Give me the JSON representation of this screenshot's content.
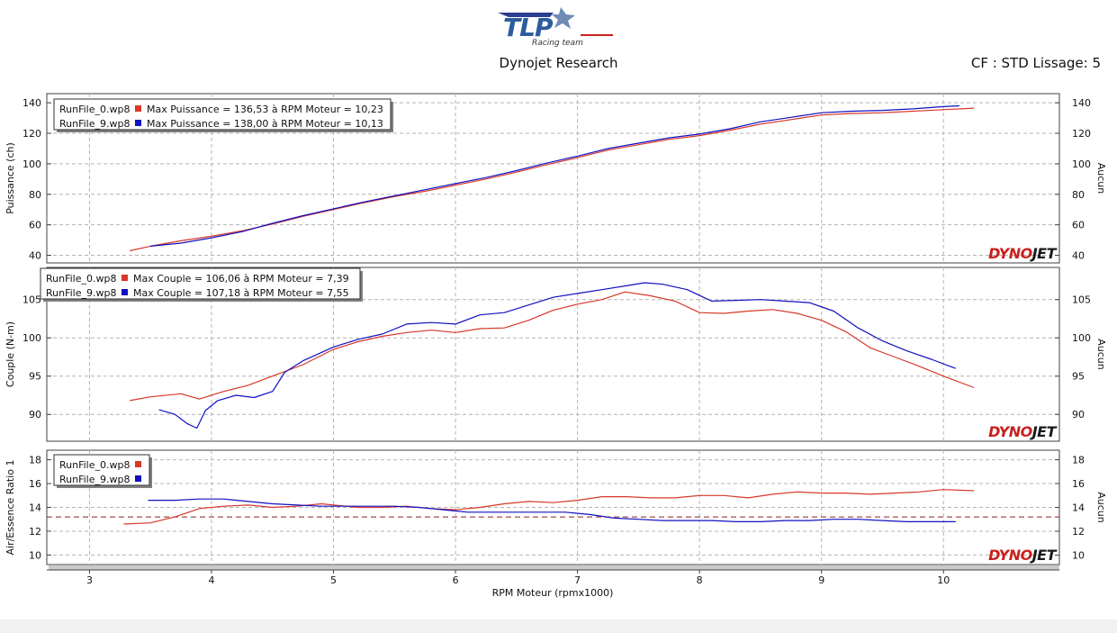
{
  "header": {
    "logo_text": "TLP",
    "logo_tagline": "Racing team",
    "title": "Dynojet Research",
    "cf_label": "CF : STD Lissage: 5"
  },
  "brand": {
    "watermark": "DYNOJET"
  },
  "colors": {
    "run0": "#d8372a",
    "run9": "#1010c0",
    "grid": "#b4b4b4",
    "watermark_red": "#c8201e",
    "watermark_dark": "#1a1a1a",
    "refline": "#8b2020"
  },
  "chart_data": [
    {
      "type": "line",
      "ylabel": "Puissance (ch)",
      "ylabel_right": "Aucun",
      "xlabel": "RPM Moteur (rpmx1000)",
      "xlim": [
        2.65,
        10.95
      ],
      "ylim": [
        35,
        146
      ],
      "yticks": [
        40,
        60,
        80,
        100,
        120,
        140
      ],
      "xticks": [
        3,
        4,
        5,
        6,
        7,
        8,
        9,
        10
      ],
      "grid": true,
      "legend_position": "top-left",
      "legend": [
        {
          "run": "RunFile_0.wp8",
          "text": "Max Puissance = 136,53 à RPM Moteur = 10,23"
        },
        {
          "run": "RunFile_9.wp8",
          "text": "Max Puissance = 138,00 à RPM Moteur = 10,13"
        }
      ],
      "series": [
        {
          "name": "RunFile_0.wp8",
          "x": [
            3.33,
            3.5,
            3.75,
            4.0,
            4.25,
            4.5,
            4.75,
            5.0,
            5.25,
            5.5,
            5.75,
            6.0,
            6.25,
            6.5,
            6.75,
            7.0,
            7.25,
            7.5,
            7.75,
            8.0,
            8.25,
            8.5,
            8.75,
            9.0,
            9.25,
            9.5,
            9.75,
            10.0,
            10.25
          ],
          "y": [
            43,
            46,
            49.5,
            52.5,
            56,
            60.5,
            65.5,
            70,
            74.5,
            78.5,
            82,
            86,
            90,
            94.5,
            99.5,
            104,
            109,
            112.5,
            116,
            118.5,
            122,
            126,
            129,
            132,
            133,
            133.5,
            134.5,
            135.5,
            136.5
          ]
        },
        {
          "name": "RunFile_9.wp8",
          "x": [
            3.5,
            3.75,
            4.0,
            4.25,
            4.5,
            4.75,
            5.0,
            5.25,
            5.5,
            5.75,
            6.0,
            6.25,
            6.5,
            6.75,
            7.0,
            7.25,
            7.5,
            7.75,
            8.0,
            8.25,
            8.5,
            8.75,
            9.0,
            9.25,
            9.5,
            9.75,
            10.0,
            10.13
          ],
          "y": [
            46,
            48,
            51.5,
            55.5,
            61,
            66,
            70.5,
            75,
            79,
            83,
            87,
            91,
            95.5,
            100.5,
            105,
            110,
            113.5,
            117,
            119.5,
            123,
            127.5,
            130.5,
            133.5,
            134.5,
            135,
            136,
            137.5,
            138
          ]
        }
      ]
    },
    {
      "type": "line",
      "ylabel": "Couple (N-m)",
      "ylabel_right": "Aucun",
      "xlabel": "RPM Moteur (rpmx1000)",
      "xlim": [
        2.65,
        10.95
      ],
      "ylim": [
        86.5,
        109.2
      ],
      "yticks": [
        90,
        95,
        100,
        105
      ],
      "xticks": [
        3,
        4,
        5,
        6,
        7,
        8,
        9,
        10
      ],
      "grid": true,
      "legend_position": "top-left",
      "legend": [
        {
          "run": "RunFile_0.wp8",
          "text": "Max Couple = 106,06 à RPM Moteur = 7,39"
        },
        {
          "run": "RunFile_9.wp8",
          "text": "Max Couple = 107,18 à RPM Moteur = 7,55"
        }
      ],
      "series": [
        {
          "name": "RunFile_0.wp8",
          "x": [
            3.33,
            3.5,
            3.75,
            3.9,
            4.1,
            4.3,
            4.5,
            4.75,
            5.0,
            5.2,
            5.4,
            5.6,
            5.8,
            6.0,
            6.2,
            6.4,
            6.6,
            6.8,
            7.0,
            7.2,
            7.39,
            7.6,
            7.8,
            8.0,
            8.2,
            8.4,
            8.6,
            8.8,
            9.0,
            9.2,
            9.4,
            9.6,
            9.8,
            10.0,
            10.25
          ],
          "y": [
            91.8,
            92.3,
            92.7,
            92.0,
            93.0,
            93.8,
            95.0,
            96.5,
            98.5,
            99.5,
            100.2,
            100.7,
            101.0,
            100.7,
            101.2,
            101.3,
            102.3,
            103.6,
            104.4,
            105.0,
            106.0,
            105.5,
            104.8,
            103.3,
            103.2,
            103.5,
            103.7,
            103.2,
            102.3,
            100.8,
            98.7,
            97.5,
            96.3,
            95.0,
            93.5
          ]
        },
        {
          "name": "RunFile_9.wp8",
          "x": [
            3.57,
            3.7,
            3.8,
            3.88,
            3.95,
            4.05,
            4.2,
            4.35,
            4.5,
            4.6,
            4.75,
            5.0,
            5.2,
            5.4,
            5.6,
            5.8,
            6.0,
            6.2,
            6.4,
            6.6,
            6.8,
            7.0,
            7.2,
            7.4,
            7.55,
            7.7,
            7.9,
            8.1,
            8.3,
            8.5,
            8.7,
            8.9,
            9.1,
            9.3,
            9.5,
            9.7,
            9.9,
            10.1
          ],
          "y": [
            90.6,
            90.0,
            88.8,
            88.2,
            90.5,
            91.8,
            92.5,
            92.2,
            93.0,
            95.5,
            97.0,
            98.8,
            99.8,
            100.5,
            101.8,
            102.0,
            101.8,
            103.0,
            103.3,
            104.3,
            105.3,
            105.8,
            106.3,
            106.8,
            107.2,
            107.0,
            106.3,
            104.8,
            104.9,
            105.0,
            104.8,
            104.6,
            103.5,
            101.3,
            99.6,
            98.3,
            97.2,
            96.0
          ]
        }
      ]
    },
    {
      "type": "line",
      "ylabel": "Air/Essence Ratio 1",
      "ylabel_right": "Aucun",
      "xlabel": "RPM Moteur (rpmx1000)",
      "xlim": [
        2.65,
        10.95
      ],
      "ylim": [
        9.2,
        18.8
      ],
      "yticks": [
        10,
        12,
        14,
        16,
        18
      ],
      "xticks": [
        3,
        4,
        5,
        6,
        7,
        8,
        9,
        10
      ],
      "grid": true,
      "reference_line": 13.2,
      "legend_position": "top-left",
      "legend": [
        {
          "run": "RunFile_0.wp8",
          "text": ""
        },
        {
          "run": "RunFile_9.wp8",
          "text": ""
        }
      ],
      "series": [
        {
          "name": "RunFile_0.wp8",
          "x": [
            3.28,
            3.5,
            3.7,
            3.9,
            4.1,
            4.3,
            4.5,
            4.7,
            4.9,
            5.0,
            5.2,
            5.4,
            5.6,
            5.8,
            6.0,
            6.2,
            6.4,
            6.6,
            6.8,
            7.0,
            7.2,
            7.4,
            7.6,
            7.8,
            8.0,
            8.2,
            8.4,
            8.6,
            8.8,
            9.0,
            9.2,
            9.4,
            9.6,
            9.8,
            10.0,
            10.25
          ],
          "y": [
            12.6,
            12.7,
            13.2,
            13.9,
            14.1,
            14.2,
            14.0,
            14.1,
            14.3,
            14.2,
            14.0,
            14.0,
            14.1,
            13.9,
            13.8,
            14.0,
            14.3,
            14.5,
            14.4,
            14.6,
            14.9,
            14.9,
            14.8,
            14.8,
            15.0,
            15.0,
            14.8,
            15.1,
            15.3,
            15.2,
            15.2,
            15.1,
            15.2,
            15.3,
            15.5,
            15.4
          ]
        },
        {
          "name": "RunFile_9.wp8",
          "x": [
            3.48,
            3.7,
            3.9,
            4.1,
            4.3,
            4.5,
            4.7,
            4.9,
            5.1,
            5.3,
            5.5,
            5.7,
            5.9,
            6.1,
            6.3,
            6.5,
            6.7,
            6.9,
            7.1,
            7.3,
            7.5,
            7.7,
            7.9,
            8.1,
            8.3,
            8.5,
            8.7,
            8.9,
            9.1,
            9.3,
            9.5,
            9.7,
            9.9,
            10.1
          ],
          "y": [
            14.6,
            14.6,
            14.7,
            14.7,
            14.5,
            14.3,
            14.2,
            14.1,
            14.1,
            14.1,
            14.1,
            14.0,
            13.8,
            13.6,
            13.6,
            13.6,
            13.6,
            13.6,
            13.4,
            13.1,
            13.0,
            12.9,
            12.9,
            12.9,
            12.8,
            12.8,
            12.9,
            12.9,
            13.0,
            13.0,
            12.9,
            12.8,
            12.8,
            12.8
          ]
        }
      ]
    }
  ]
}
